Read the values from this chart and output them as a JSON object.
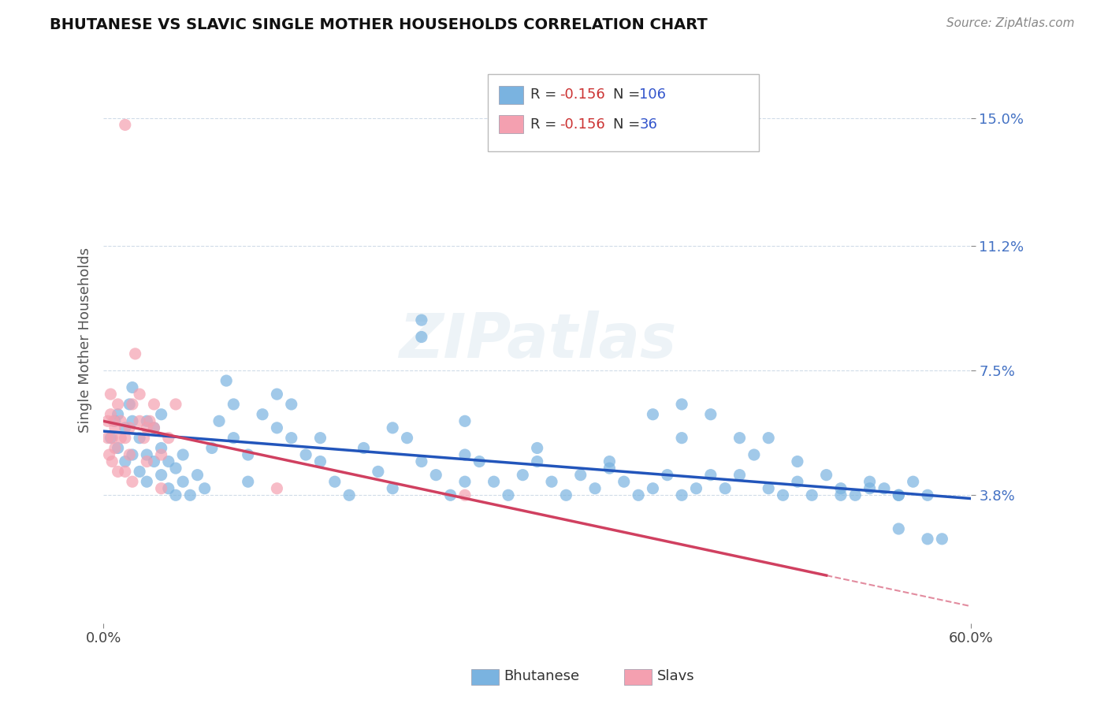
{
  "title": "BHUTANESE VS SLAVIC SINGLE MOTHER HOUSEHOLDS CORRELATION CHART",
  "source_text": "Source: ZipAtlas.com",
  "ylabel": "Single Mother Households",
  "x_tick_labels": [
    "0.0%",
    "60.0%"
  ],
  "y_tick_labels": [
    "3.8%",
    "7.5%",
    "11.2%",
    "15.0%"
  ],
  "y_tick_values": [
    0.038,
    0.075,
    0.112,
    0.15
  ],
  "x_min": 0.0,
  "x_max": 0.6,
  "y_min": 0.0,
  "y_max": 0.168,
  "legend_r_blue": "-0.156",
  "legend_n_blue": "106",
  "legend_r_pink": "-0.156",
  "legend_n_pink": "36",
  "blue_color": "#7ab3e0",
  "pink_color": "#f4a0b0",
  "trend_blue_color": "#2255bb",
  "trend_pink_color": "#d04060",
  "watermark": "ZIPatlas",
  "blue_scatter_x": [
    0.005,
    0.008,
    0.01,
    0.01,
    0.015,
    0.015,
    0.018,
    0.02,
    0.02,
    0.02,
    0.025,
    0.025,
    0.03,
    0.03,
    0.03,
    0.035,
    0.035,
    0.04,
    0.04,
    0.04,
    0.045,
    0.045,
    0.05,
    0.05,
    0.055,
    0.055,
    0.06,
    0.065,
    0.07,
    0.075,
    0.08,
    0.085,
    0.09,
    0.09,
    0.1,
    0.1,
    0.11,
    0.12,
    0.12,
    0.13,
    0.13,
    0.14,
    0.15,
    0.15,
    0.16,
    0.17,
    0.18,
    0.19,
    0.2,
    0.2,
    0.21,
    0.22,
    0.22,
    0.23,
    0.24,
    0.25,
    0.25,
    0.26,
    0.27,
    0.28,
    0.29,
    0.3,
    0.31,
    0.32,
    0.33,
    0.34,
    0.35,
    0.36,
    0.37,
    0.38,
    0.39,
    0.4,
    0.4,
    0.41,
    0.42,
    0.43,
    0.44,
    0.45,
    0.46,
    0.47,
    0.48,
    0.49,
    0.5,
    0.51,
    0.52,
    0.53,
    0.54,
    0.55,
    0.56,
    0.57,
    0.38,
    0.4,
    0.42,
    0.44,
    0.46,
    0.48,
    0.51,
    0.53,
    0.55,
    0.57,
    0.22,
    0.25,
    0.3,
    0.35,
    0.55,
    0.58
  ],
  "blue_scatter_y": [
    0.055,
    0.06,
    0.052,
    0.062,
    0.048,
    0.058,
    0.065,
    0.05,
    0.06,
    0.07,
    0.045,
    0.055,
    0.042,
    0.05,
    0.06,
    0.048,
    0.058,
    0.044,
    0.052,
    0.062,
    0.04,
    0.048,
    0.038,
    0.046,
    0.042,
    0.05,
    0.038,
    0.044,
    0.04,
    0.052,
    0.06,
    0.072,
    0.065,
    0.055,
    0.05,
    0.042,
    0.062,
    0.068,
    0.058,
    0.055,
    0.065,
    0.05,
    0.048,
    0.055,
    0.042,
    0.038,
    0.052,
    0.045,
    0.04,
    0.058,
    0.055,
    0.048,
    0.09,
    0.044,
    0.038,
    0.05,
    0.042,
    0.048,
    0.042,
    0.038,
    0.044,
    0.048,
    0.042,
    0.038,
    0.044,
    0.04,
    0.046,
    0.042,
    0.038,
    0.04,
    0.044,
    0.038,
    0.055,
    0.04,
    0.044,
    0.04,
    0.044,
    0.05,
    0.04,
    0.038,
    0.042,
    0.038,
    0.044,
    0.04,
    0.038,
    0.042,
    0.04,
    0.038,
    0.042,
    0.038,
    0.062,
    0.065,
    0.062,
    0.055,
    0.055,
    0.048,
    0.038,
    0.04,
    0.028,
    0.025,
    0.085,
    0.06,
    0.052,
    0.048,
    0.038,
    0.025
  ],
  "pink_scatter_x": [
    0.003,
    0.003,
    0.004,
    0.005,
    0.005,
    0.006,
    0.006,
    0.007,
    0.008,
    0.008,
    0.01,
    0.01,
    0.012,
    0.012,
    0.015,
    0.015,
    0.015,
    0.018,
    0.018,
    0.02,
    0.02,
    0.022,
    0.025,
    0.025,
    0.028,
    0.03,
    0.03,
    0.032,
    0.035,
    0.035,
    0.04,
    0.04,
    0.045,
    0.05,
    0.12,
    0.25
  ],
  "pink_scatter_y": [
    0.055,
    0.06,
    0.05,
    0.062,
    0.068,
    0.055,
    0.048,
    0.06,
    0.052,
    0.058,
    0.065,
    0.045,
    0.055,
    0.06,
    0.148,
    0.055,
    0.045,
    0.05,
    0.058,
    0.065,
    0.042,
    0.08,
    0.06,
    0.068,
    0.055,
    0.058,
    0.048,
    0.06,
    0.058,
    0.065,
    0.05,
    0.04,
    0.055,
    0.065,
    0.04,
    0.038
  ]
}
